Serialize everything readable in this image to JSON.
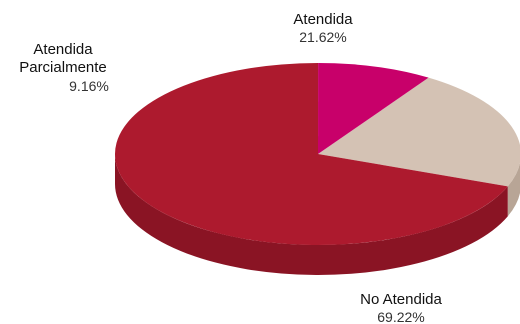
{
  "chart_data": {
    "type": "pie",
    "style": "3d",
    "legend": "none",
    "slices": [
      {
        "name_lines": [
          "Atendida"
        ],
        "percent_label": "21.62%",
        "value": 21.62,
        "color": "#d4c2b4",
        "side_color": "#b8a596"
      },
      {
        "name_lines": [
          "No Atendida"
        ],
        "percent_label": "69.22%",
        "value": 69.22,
        "color": "#ad1a2e",
        "side_color": "#8a1424"
      },
      {
        "name_lines": [
          "Atendida",
          "Parcialmente"
        ],
        "percent_label": "9.16%",
        "value": 9.16,
        "color": "#c8006a",
        "side_color": "#9a0052"
      }
    ]
  }
}
